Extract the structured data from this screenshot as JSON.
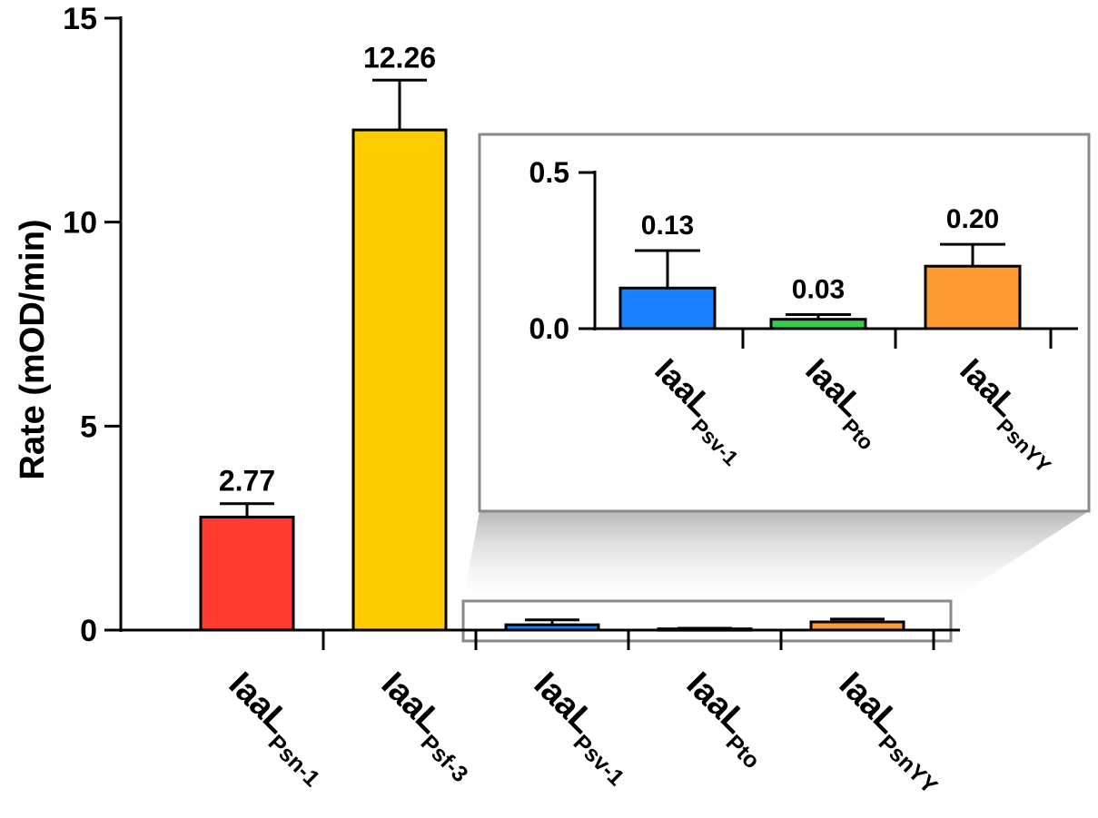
{
  "chart_data": [
    {
      "type": "bar",
      "ylabel": "Rate (mOD/min)",
      "ylim": [
        0,
        15
      ],
      "yticks": [
        "0",
        "5",
        "10",
        "15"
      ],
      "categories": [
        {
          "main": "IaaL",
          "sub": "Psn-1"
        },
        {
          "main": "IaaL",
          "sub": "Psf-3"
        },
        {
          "main": "IaaL",
          "sub": "Psv-1"
        },
        {
          "main": "IaaL",
          "sub": "Pto"
        },
        {
          "main": "IaaL",
          "sub": "PsnYY"
        }
      ],
      "values": [
        2.77,
        12.26,
        0.13,
        0.03,
        0.2
      ],
      "errors": [
        0.33,
        1.22,
        0.12,
        0.015,
        0.07
      ],
      "data_labels": [
        "2.77",
        "12.26",
        "",
        "",
        ""
      ],
      "colors": [
        "#ff3b2f",
        "#ffcc00",
        "#1a82ff",
        "#33cc4d",
        "#ff9a33"
      ]
    },
    {
      "type": "bar",
      "inset": true,
      "ylim": [
        0,
        0.5
      ],
      "yticks": [
        "0.0",
        "0.5"
      ],
      "categories": [
        {
          "main": "IaaL",
          "sub": "Psv-1"
        },
        {
          "main": "IaaL",
          "sub": "Pto"
        },
        {
          "main": "IaaL",
          "sub": "PsnYY"
        }
      ],
      "values": [
        0.13,
        0.03,
        0.2
      ],
      "errors": [
        0.12,
        0.015,
        0.07
      ],
      "data_labels": [
        "0.13",
        "0.03",
        "0.20"
      ],
      "colors": [
        "#1a82ff",
        "#33cc4d",
        "#ff9a33"
      ]
    }
  ]
}
